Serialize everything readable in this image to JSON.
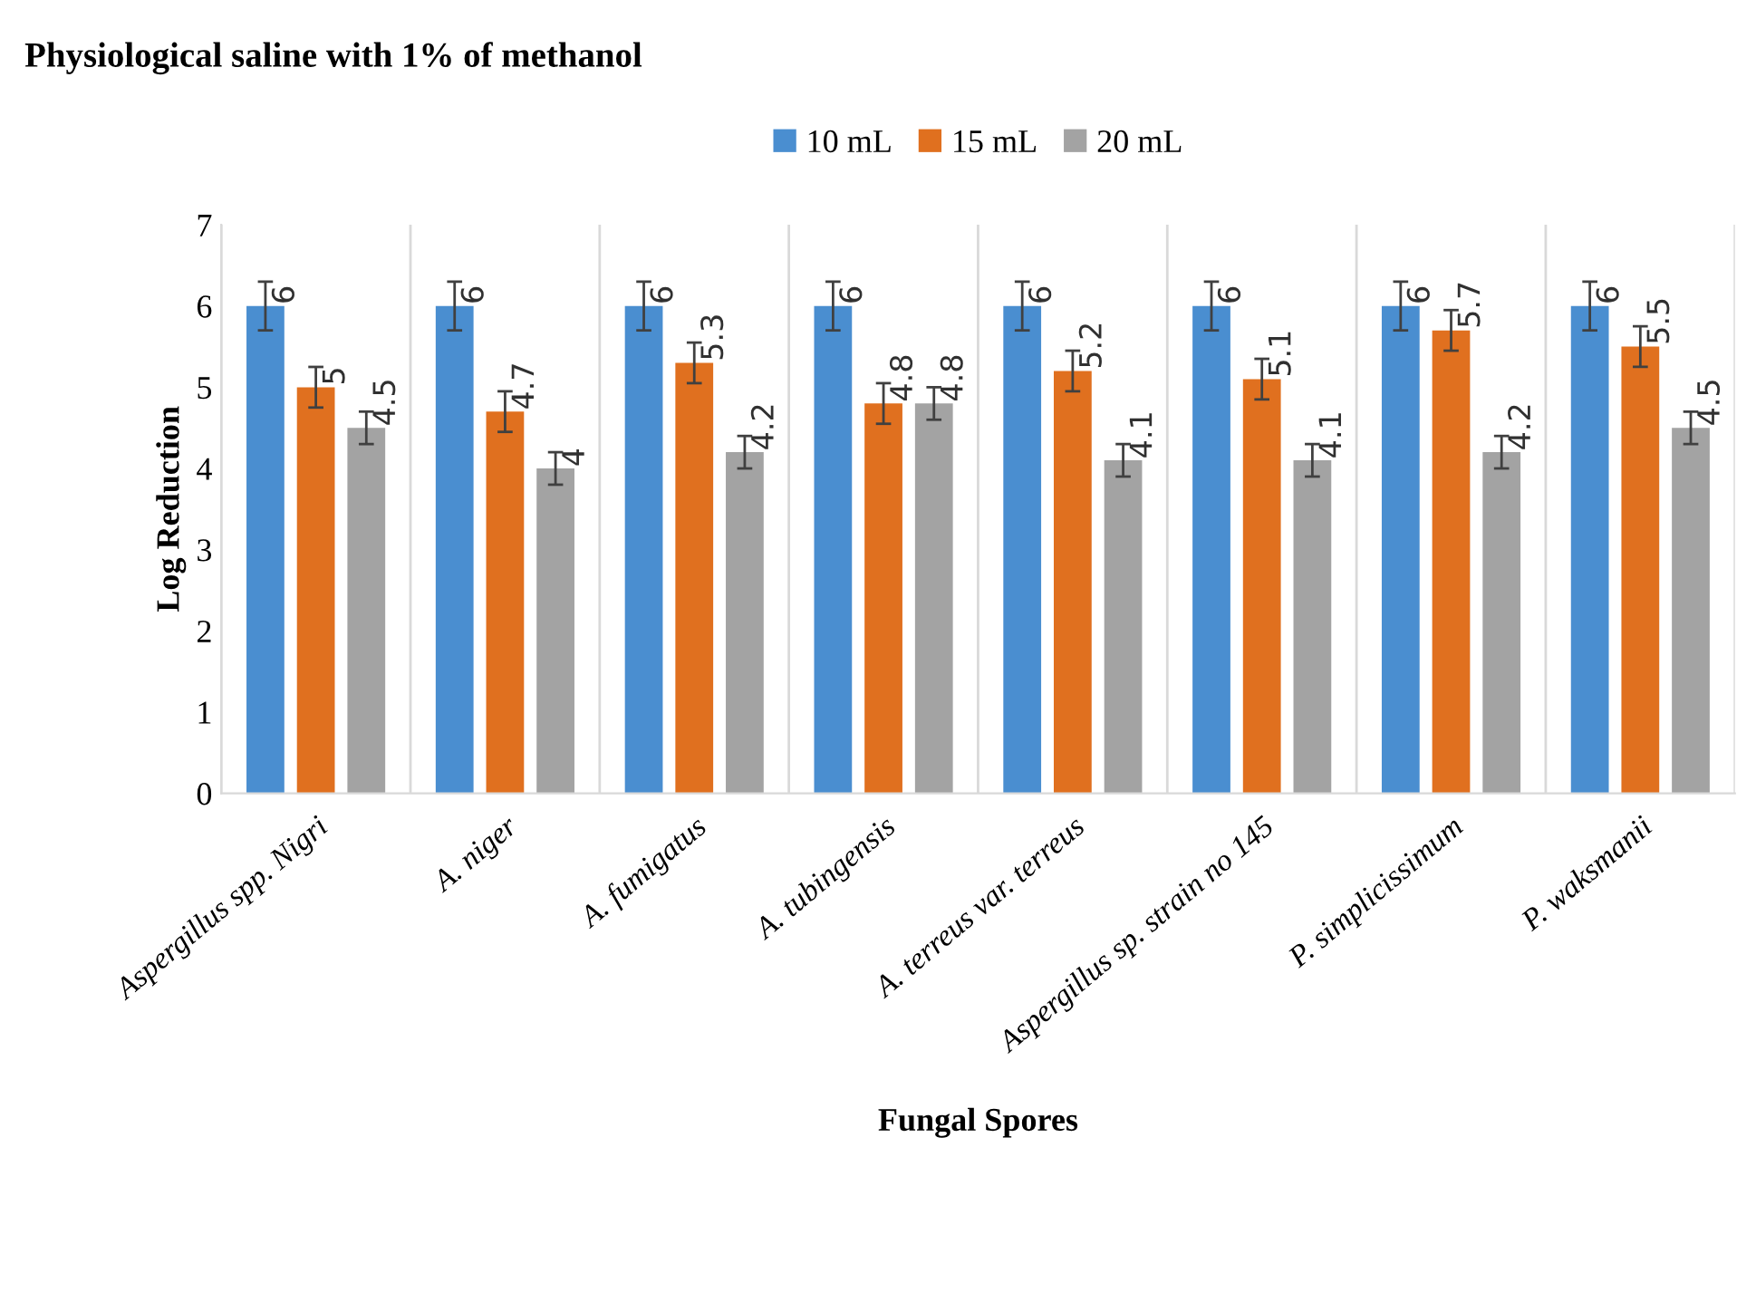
{
  "chart_data": {
    "type": "bar",
    "title": "Physiological saline with 1% of methanol",
    "xlabel": "Fungal Spores",
    "ylabel": "Log Reduction",
    "categories": [
      "Aspergillus spp. Nigri",
      "A. niger",
      "A. fumigatus",
      "A. tubingensis",
      "A. terreus var. terreus",
      "Aspergillus sp. strain no 145",
      "P. simplicissimum",
      "P. waksmanii"
    ],
    "series": [
      {
        "name": "10 mL",
        "color": "#4a8ed0",
        "values": [
          6,
          6,
          6,
          6,
          6,
          6,
          6,
          6
        ],
        "errors": [
          0.3,
          0.3,
          0.3,
          0.3,
          0.3,
          0.3,
          0.3,
          0.3
        ]
      },
      {
        "name": "15 mL",
        "color": "#e0701f",
        "values": [
          5,
          4.7,
          5.3,
          4.8,
          5.2,
          5.1,
          5.7,
          5.5
        ],
        "errors": [
          0.25,
          0.25,
          0.25,
          0.25,
          0.25,
          0.25,
          0.25,
          0.25
        ]
      },
      {
        "name": "20 mL",
        "color": "#a3a3a3",
        "values": [
          4.5,
          4,
          4.2,
          4.8,
          4.1,
          4.1,
          4.2,
          4.5
        ],
        "errors": [
          0.2,
          0.2,
          0.2,
          0.2,
          0.2,
          0.2,
          0.2,
          0.2
        ]
      }
    ],
    "ylim": [
      0,
      7
    ],
    "yticks": [
      0,
      1,
      2,
      3,
      4,
      5,
      6,
      7
    ],
    "grid": "x",
    "legend": "top",
    "data_labels": true
  }
}
